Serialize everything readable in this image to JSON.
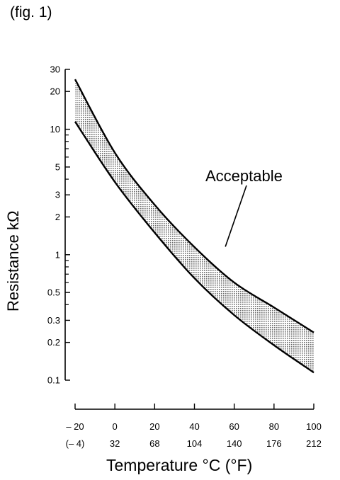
{
  "figure_label": "(fig. 1)",
  "chart_data": {
    "type": "area",
    "ylabel": "Resistance kΩ",
    "xlabel": "Temperature °C (°F)",
    "yscale": "log",
    "ylim": [
      0.1,
      30
    ],
    "xlim": [
      -20,
      100
    ],
    "y_ticks": [
      {
        "value": 0.1,
        "label": "0.1"
      },
      {
        "value": 0.2,
        "label": "0.2"
      },
      {
        "value": 0.3,
        "label": "0.3"
      },
      {
        "value": 0.5,
        "label": "0.5"
      },
      {
        "value": 1,
        "label": "1"
      },
      {
        "value": 2,
        "label": "2"
      },
      {
        "value": 3,
        "label": "3"
      },
      {
        "value": 5,
        "label": "5"
      },
      {
        "value": 10,
        "label": "10"
      },
      {
        "value": 20,
        "label": "20"
      },
      {
        "value": 30,
        "label": "30"
      }
    ],
    "y_minor_ticks": [
      0.4,
      0.6,
      0.7,
      0.8,
      0.9,
      4,
      6,
      7,
      8,
      9
    ],
    "x_ticks": [
      {
        "value": -20,
        "label": "– 20",
        "label_f": "(– 4)"
      },
      {
        "value": 0,
        "label": "0",
        "label_f": "32"
      },
      {
        "value": 20,
        "label": "20",
        "label_f": "68"
      },
      {
        "value": 40,
        "label": "40",
        "label_f": "104"
      },
      {
        "value": 60,
        "label": "60",
        "label_f": "140"
      },
      {
        "value": 80,
        "label": "80",
        "label_f": "176"
      },
      {
        "value": 100,
        "label": "100",
        "label_f": "212"
      }
    ],
    "series": [
      {
        "role": "upper",
        "x": [
          -20,
          0,
          20,
          40,
          60,
          80,
          100
        ],
        "values": [
          25,
          6.5,
          2.5,
          1.15,
          0.6,
          0.38,
          0.24
        ]
      },
      {
        "role": "lower",
        "x": [
          -20,
          0,
          20,
          40,
          60,
          80,
          100
        ],
        "values": [
          11.5,
          3.8,
          1.5,
          0.65,
          0.33,
          0.19,
          0.115
        ]
      }
    ],
    "annotations": [
      {
        "text": "Acceptable",
        "x": 47,
        "y": 1.1
      }
    ],
    "colors": {
      "band_fill": "#c8c8c8",
      "line": "#000000"
    }
  }
}
